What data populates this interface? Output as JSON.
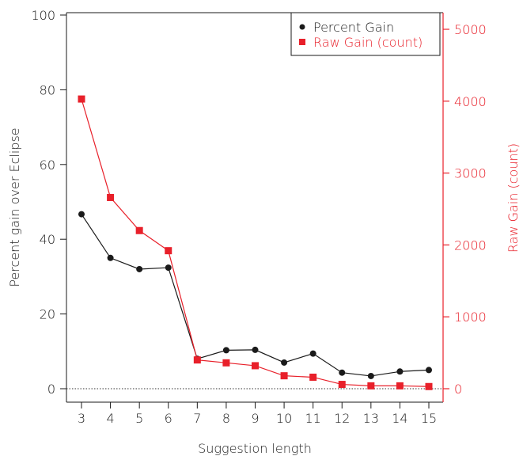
{
  "chart_data": {
    "type": "line",
    "x": [
      3,
      4,
      5,
      6,
      7,
      8,
      9,
      10,
      11,
      12,
      13,
      14,
      15
    ],
    "xlabel": "Suggestion length",
    "xlim": [
      3,
      15
    ],
    "y_left": {
      "label": "Percent gain over Eclipse",
      "lim": [
        0,
        100
      ],
      "ticks": [
        0,
        20,
        40,
        60,
        80,
        100
      ],
      "color": "#1a1a1a"
    },
    "y_right": {
      "label": "Raw Gain (count)",
      "lim": [
        0,
        5000
      ],
      "ticks": [
        0,
        1000,
        2000,
        3000,
        4000,
        5000
      ],
      "color": "#e8202a"
    },
    "series": [
      {
        "name": "Percent Gain",
        "axis": "left",
        "marker": "circle",
        "color": "#1a1a1a",
        "values": [
          46.7,
          35.0,
          32.0,
          32.4,
          8.0,
          10.3,
          10.4,
          7.0,
          9.4,
          4.3,
          3.4,
          4.6,
          5.0
        ]
      },
      {
        "name": "Raw Gain (count)",
        "axis": "right",
        "marker": "square",
        "color": "#e8202a",
        "values": [
          4030,
          2660,
          2200,
          1920,
          400,
          360,
          320,
          180,
          160,
          60,
          40,
          40,
          30
        ]
      }
    ],
    "reference_line": {
      "y": 0,
      "style": "dotted"
    },
    "legend_position": "top-right"
  }
}
